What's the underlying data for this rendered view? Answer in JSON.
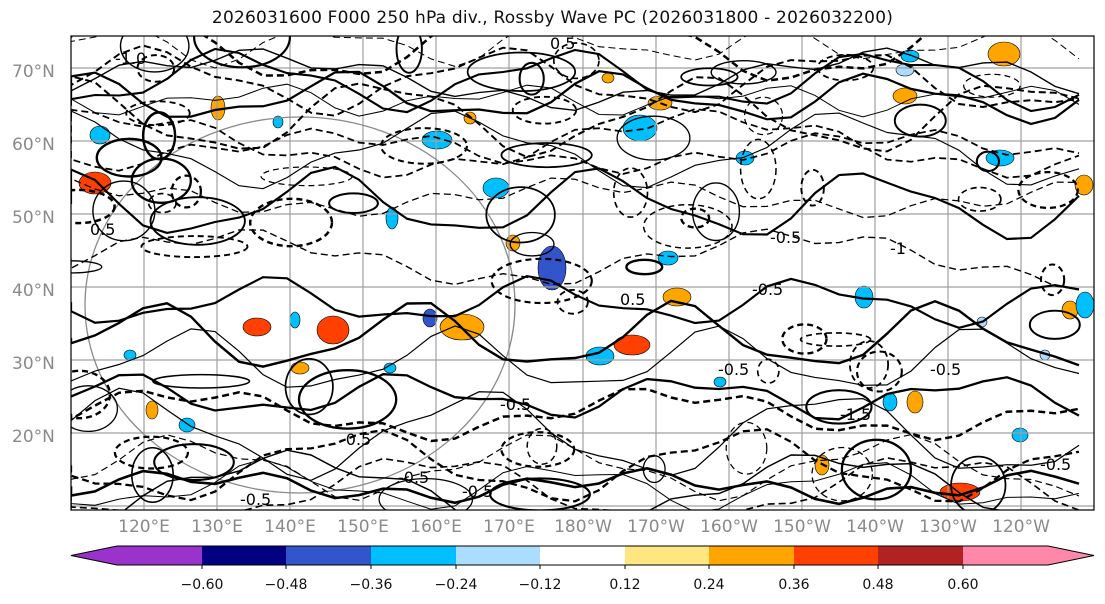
{
  "title": "2026031600 F000 250 hPa div., Rossby Wave PC (2026031800 - 2026032200)",
  "map": {
    "lat_ticks": [
      "70°N",
      "60°N",
      "50°N",
      "40°N",
      "30°N",
      "20°N"
    ],
    "lon_ticks": [
      "120°E",
      "130°E",
      "140°E",
      "150°E",
      "160°E",
      "170°E",
      "180°W",
      "170°W",
      "160°W",
      "150°W",
      "140°W",
      "130°W",
      "120°W"
    ],
    "contour_labels": [
      "-1.0",
      "0.5",
      "-0.5",
      "-0.5",
      "-0.5",
      "-0.5",
      "0.5",
      "-0.5",
      "-0.5",
      "-0.5",
      "-1",
      "0.5",
      "-0.5",
      "-1.5",
      "-0.5",
      "-0.5"
    ],
    "legend_shown": false,
    "colors": {
      "contour": "#000000",
      "grid": "#a0a0a0",
      "circle": "#8a8a8a",
      "tick_labels": "#8a8a8a"
    }
  },
  "colorbar": {
    "labels": [
      "−0.60",
      "−0.48",
      "−0.36",
      "−0.24",
      "−0.12",
      "0.12",
      "0.24",
      "0.36",
      "0.48",
      "0.60"
    ],
    "colors": [
      "#9933cc",
      "#000080",
      "#3355cc",
      "#00bfff",
      "#aaddff",
      "#ffffff",
      "#ffe680",
      "#ffa500",
      "#ff4000",
      "#b22222",
      "#ff88aa"
    ],
    "extend": "both"
  }
}
